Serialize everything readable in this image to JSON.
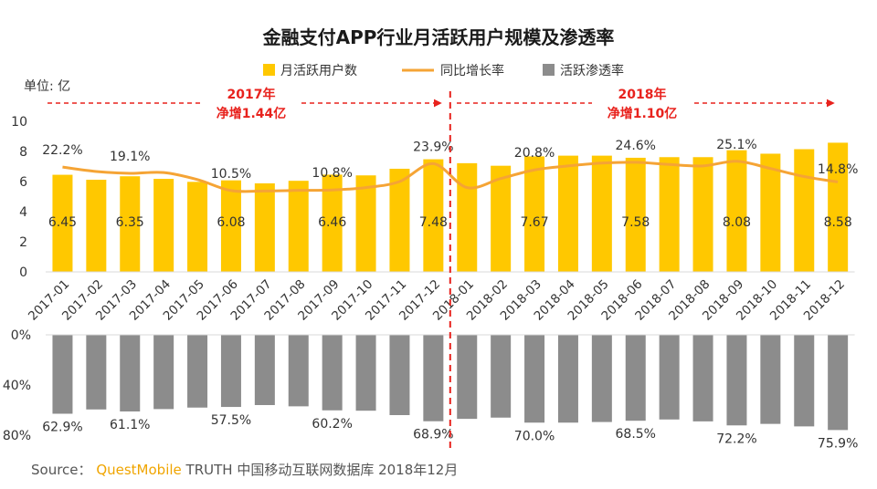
{
  "chart_data": {
    "type": "bar",
    "title": "金融支付APP行业月活跃用户规模及渗透率",
    "unit_label": "单位: 亿",
    "legend": {
      "bar": "月活跃用户数",
      "line": "同比增长率",
      "penetration": "活跃渗透率"
    },
    "colors": {
      "bar": "#ffc800",
      "line": "#f5a435",
      "penetration": "#8c8c8c",
      "divider": "#e8221d",
      "annotation": "#e8221d"
    },
    "categories": [
      "2017-01",
      "2017-02",
      "2017-03",
      "2017-04",
      "2017-05",
      "2017-06",
      "2017-07",
      "2017-08",
      "2017-09",
      "2017-10",
      "2017-11",
      "2017-12",
      "2018-01",
      "2018-02",
      "2018-03",
      "2018-04",
      "2018-05",
      "2018-06",
      "2018-07",
      "2018-08",
      "2018-09",
      "2018-10",
      "2018-11",
      "2018-12"
    ],
    "series": [
      {
        "name": "月活跃用户数",
        "type": "bar",
        "values": [
          6.45,
          6.12,
          6.35,
          6.18,
          5.98,
          6.08,
          5.88,
          6.05,
          6.46,
          6.41,
          6.85,
          7.48,
          7.22,
          7.05,
          7.67,
          7.72,
          7.72,
          7.58,
          7.62,
          7.62,
          8.08,
          7.85,
          8.15,
          8.58
        ]
      },
      {
        "name": "同比增长率",
        "type": "line",
        "values": [
          22.2,
          20.0,
          19.1,
          19.5,
          16.0,
          10.5,
          10.3,
          10.6,
          10.8,
          12.0,
          15.0,
          23.9,
          12.0,
          16.5,
          20.8,
          22.8,
          24.2,
          24.6,
          23.5,
          22.8,
          25.1,
          21.5,
          17.5,
          14.8
        ]
      },
      {
        "name": "活跃渗透率",
        "type": "bar",
        "values": [
          62.9,
          59.5,
          61.1,
          59.2,
          58.0,
          57.5,
          56.0,
          57.0,
          60.2,
          60.5,
          64.0,
          68.9,
          67.0,
          66.0,
          70.0,
          70.0,
          69.5,
          68.5,
          67.5,
          69.0,
          72.2,
          71.0,
          73.0,
          75.9
        ]
      }
    ],
    "bar_value_labels": [
      {
        "index": 0,
        "text": "6.45"
      },
      {
        "index": 2,
        "text": "6.35"
      },
      {
        "index": 5,
        "text": "6.08"
      },
      {
        "index": 8,
        "text": "6.46"
      },
      {
        "index": 11,
        "text": "7.48"
      },
      {
        "index": 14,
        "text": "7.67"
      },
      {
        "index": 17,
        "text": "7.58"
      },
      {
        "index": 20,
        "text": "8.08"
      },
      {
        "index": 23,
        "text": "8.58"
      }
    ],
    "growth_labels": [
      {
        "index": 0,
        "text": "22.2%"
      },
      {
        "index": 2,
        "text": "19.1%"
      },
      {
        "index": 5,
        "text": "10.5%"
      },
      {
        "index": 8,
        "text": "10.8%"
      },
      {
        "index": 11,
        "text": "23.9%"
      },
      {
        "index": 14,
        "text": "20.8%"
      },
      {
        "index": 17,
        "text": "24.6%"
      },
      {
        "index": 20,
        "text": "25.1%"
      },
      {
        "index": 23,
        "text": "14.8%"
      }
    ],
    "penetration_labels": [
      {
        "index": 0,
        "text": "62.9%"
      },
      {
        "index": 2,
        "text": "61.1%"
      },
      {
        "index": 5,
        "text": "57.5%"
      },
      {
        "index": 8,
        "text": "60.2%"
      },
      {
        "index": 11,
        "text": "68.9%"
      },
      {
        "index": 14,
        "text": "70.0%"
      },
      {
        "index": 17,
        "text": "68.5%"
      },
      {
        "index": 20,
        "text": "72.2%"
      },
      {
        "index": 23,
        "text": "75.9%"
      }
    ],
    "top_axis": {
      "ylim": [
        0,
        10
      ],
      "ticks": [
        "0",
        "2",
        "4",
        "6",
        "8",
        "10"
      ]
    },
    "growth_axis": {
      "ylim": [
        -30,
        45
      ]
    },
    "bottom_axis": {
      "ylim": [
        0,
        80
      ],
      "ticks": [
        "0%",
        "40%",
        "80%"
      ]
    },
    "annotations": [
      {
        "year": "2017年",
        "text": "净增1.44亿"
      },
      {
        "year": "2018年",
        "text": "净增1.10亿"
      }
    ],
    "legend_position": "top-center",
    "grid": false
  },
  "source": {
    "prefix": "Source：",
    "brand": "QuestMobile",
    "rest": "TRUTH 中国移动互联网数据库 2018年12月"
  }
}
